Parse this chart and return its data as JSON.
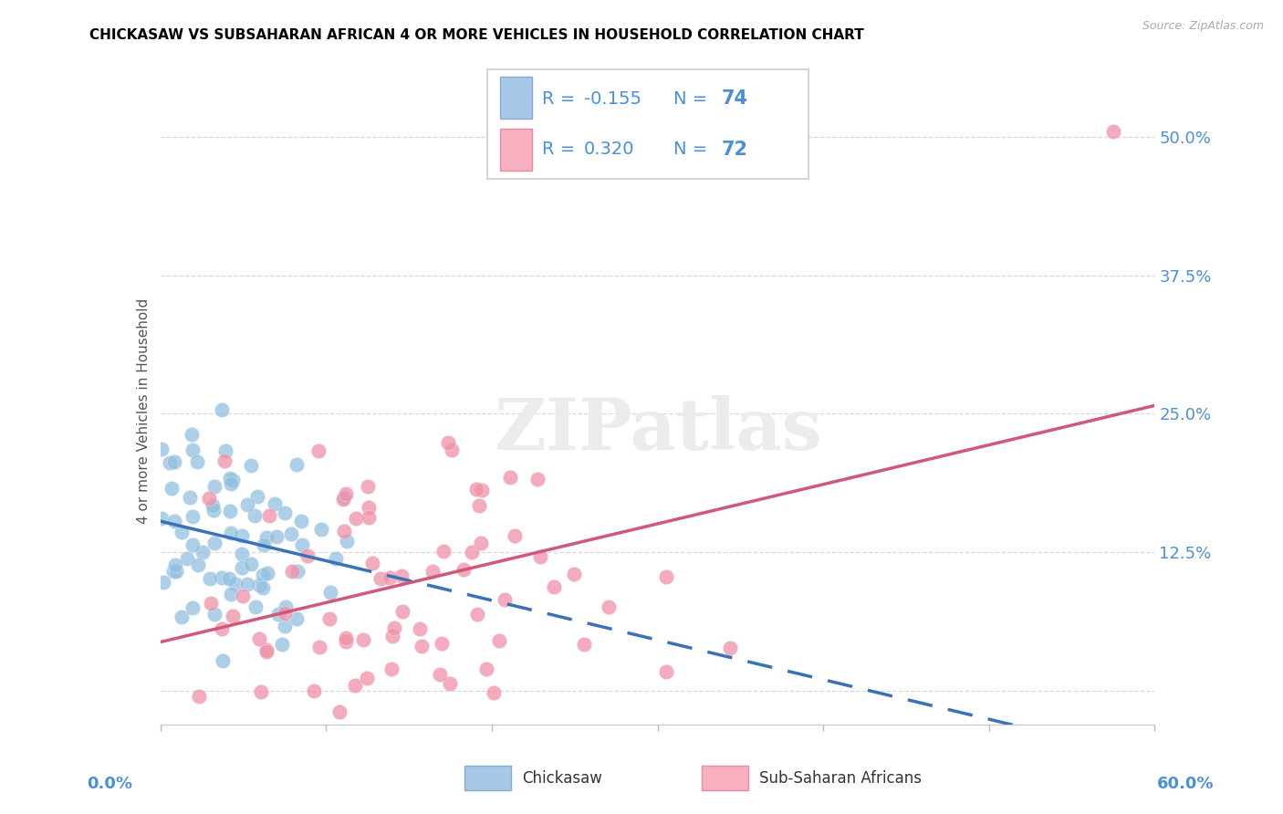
{
  "title": "CHICKASAW VS SUBSAHARAN AFRICAN 4 OR MORE VEHICLES IN HOUSEHOLD CORRELATION CHART",
  "source": "Source: ZipAtlas.com",
  "ylabel": "4 or more Vehicles in Household",
  "chickasaw_color": "#92bfe0",
  "subsaharan_color": "#f090a8",
  "trend_chickasaw_color": "#3a72b8",
  "trend_subsaharan_color": "#d05878",
  "legend_text_color": "#4a90d9",
  "xmin": 0.0,
  "xmax": 0.6,
  "ymin": -0.03,
  "ymax": 0.535,
  "right_ytick_vals": [
    0.0,
    0.125,
    0.25,
    0.375,
    0.5
  ],
  "right_yticklabels": [
    "",
    "12.5%",
    "25.0%",
    "37.5%",
    "50.0%"
  ],
  "grid_color": "#d8d8d8",
  "chickasaw_R": -0.155,
  "chickasaw_N": 74,
  "subsaharan_R": 0.32,
  "subsaharan_N": 72
}
